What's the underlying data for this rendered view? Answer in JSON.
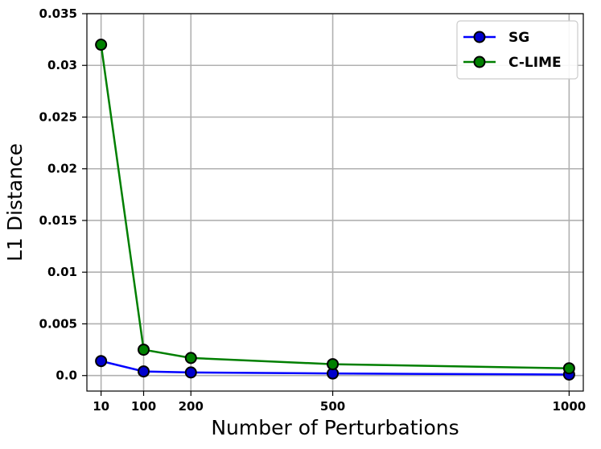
{
  "chart_data": {
    "type": "line",
    "title": "",
    "xlabel": "Number of Perturbations",
    "ylabel": "L1 Distance",
    "x": [
      10,
      100,
      200,
      500,
      1000
    ],
    "x_tick_labels": [
      "10",
      "100",
      "200",
      "500",
      "1000"
    ],
    "y_tick_labels": [
      "0.0",
      "0.005",
      "0.01",
      "0.015",
      "0.02",
      "0.025",
      "0.03",
      "0.035"
    ],
    "y_ticks": [
      0.0,
      0.005,
      0.01,
      0.015,
      0.02,
      0.025,
      0.03,
      0.035
    ],
    "xlim": [
      -20,
      1030
    ],
    "ylim": [
      -0.0015,
      0.035
    ],
    "grid": true,
    "legend_position": "top-right",
    "series": [
      {
        "name": "SG",
        "color": "#0000ff",
        "marker_color": "#0000cc",
        "values": [
          0.0014,
          0.0004,
          0.0003,
          0.0002,
          0.0001
        ]
      },
      {
        "name": "C-LIME",
        "color": "#007f00",
        "marker_color": "#008000",
        "values": [
          0.032,
          0.0025,
          0.0017,
          0.0011,
          0.0007
        ]
      }
    ]
  }
}
